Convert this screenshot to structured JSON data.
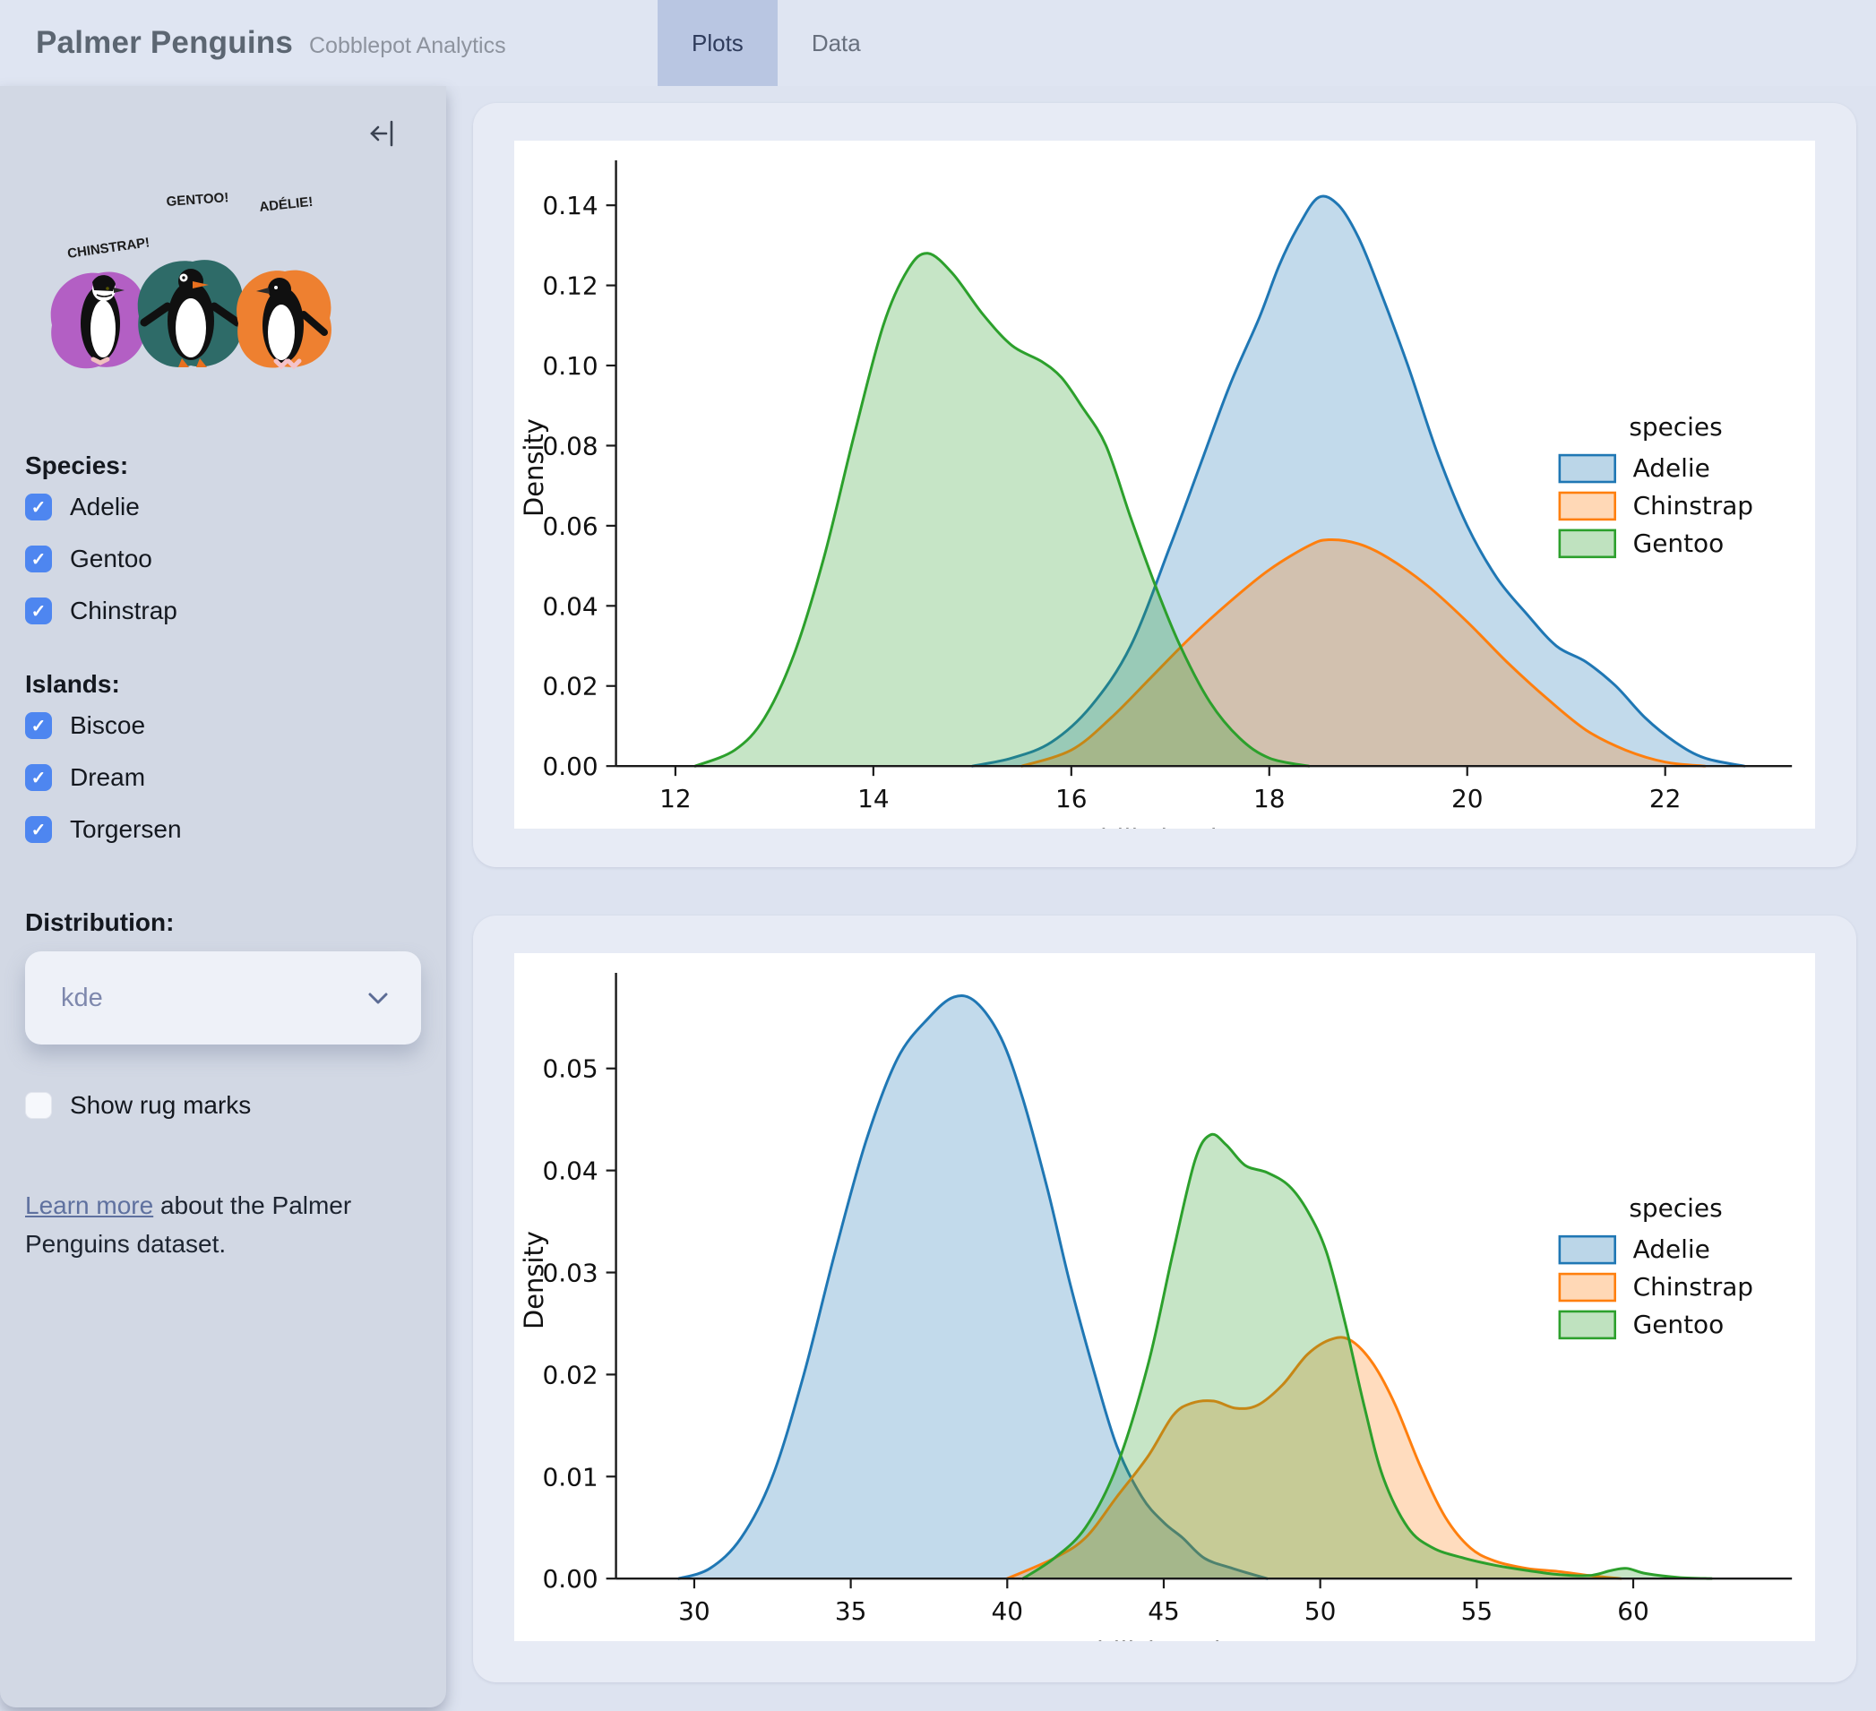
{
  "header": {
    "title": "Palmer Penguins",
    "subtitle": "Cobblepot Analytics",
    "tabs": [
      {
        "label": "Plots",
        "active": true
      },
      {
        "label": "Data",
        "active": false
      }
    ]
  },
  "sidebar": {
    "collapse_icon": "collapse-sidebar-left",
    "artwork": {
      "penguins": [
        {
          "label": "CHINSTRAP!",
          "splash_color": "#b35fc4"
        },
        {
          "label": "GENTOO!",
          "splash_color": "#2e6b68"
        },
        {
          "label": "ADÉLIE!",
          "splash_color": "#ee8030"
        }
      ]
    },
    "species": {
      "label": "Species:",
      "options": [
        {
          "label": "Adelie",
          "checked": true
        },
        {
          "label": "Gentoo",
          "checked": true
        },
        {
          "label": "Chinstrap",
          "checked": true
        }
      ]
    },
    "islands": {
      "label": "Islands:",
      "options": [
        {
          "label": "Biscoe",
          "checked": true
        },
        {
          "label": "Dream",
          "checked": true
        },
        {
          "label": "Torgersen",
          "checked": true
        }
      ]
    },
    "distribution": {
      "label": "Distribution:",
      "value": "kde"
    },
    "rug": {
      "label": "Show rug marks",
      "checked": false
    },
    "footer": {
      "link": "Learn more",
      "text": " about the Palmer Penguins dataset."
    }
  },
  "colors": {
    "accent_checkbox": "#4e86f0",
    "active_tab_bg": "#b9c6e2",
    "adelie": "#1f77b4",
    "chinstrap": "#ff7f0e",
    "gentoo": "#2ca02c"
  },
  "chart_data": [
    {
      "type": "area",
      "kind": "kde-density",
      "xlabel": "bill_depth_mm",
      "ylabel": "Density",
      "xlim": [
        11.4,
        23.1
      ],
      "ylim": [
        0,
        0.149
      ],
      "x_ticks": [
        12,
        14,
        16,
        18,
        20,
        22
      ],
      "x_tick_labels": [
        "12",
        "14",
        "16",
        "18",
        "20",
        "22"
      ],
      "y_ticks": [
        0,
        0.02,
        0.04,
        0.06,
        0.08,
        0.1,
        0.12,
        0.14
      ],
      "y_tick_labels": [
        "0.00",
        "0.02",
        "0.04",
        "0.06",
        "0.08",
        "0.10",
        "0.12",
        "0.14"
      ],
      "grid": false,
      "legend_title": "species",
      "legend_position": "right",
      "legend_y": 330,
      "series": [
        {
          "name": "Adelie",
          "color": "#1f77b4",
          "points": [
            [
              15.0,
              0.0
            ],
            [
              15.4,
              0.002
            ],
            [
              15.8,
              0.006
            ],
            [
              16.2,
              0.015
            ],
            [
              16.6,
              0.03
            ],
            [
              17.0,
              0.055
            ],
            [
              17.3,
              0.075
            ],
            [
              17.6,
              0.095
            ],
            [
              17.9,
              0.112
            ],
            [
              18.1,
              0.125
            ],
            [
              18.3,
              0.135
            ],
            [
              18.5,
              0.142
            ],
            [
              18.7,
              0.14
            ],
            [
              18.9,
              0.132
            ],
            [
              19.1,
              0.12
            ],
            [
              19.4,
              0.1
            ],
            [
              19.7,
              0.078
            ],
            [
              20.0,
              0.06
            ],
            [
              20.3,
              0.047
            ],
            [
              20.6,
              0.038
            ],
            [
              20.9,
              0.03
            ],
            [
              21.2,
              0.026
            ],
            [
              21.5,
              0.02
            ],
            [
              21.8,
              0.012
            ],
            [
              22.1,
              0.006
            ],
            [
              22.4,
              0.002
            ],
            [
              22.8,
              0.0
            ]
          ]
        },
        {
          "name": "Chinstrap",
          "color": "#ff7f0e",
          "points": [
            [
              15.5,
              0.0
            ],
            [
              16.0,
              0.004
            ],
            [
              16.4,
              0.012
            ],
            [
              16.8,
              0.022
            ],
            [
              17.2,
              0.032
            ],
            [
              17.6,
              0.041
            ],
            [
              18.0,
              0.049
            ],
            [
              18.4,
              0.055
            ],
            [
              18.6,
              0.0565
            ],
            [
              18.9,
              0.0555
            ],
            [
              19.2,
              0.052
            ],
            [
              19.6,
              0.045
            ],
            [
              20.0,
              0.036
            ],
            [
              20.4,
              0.026
            ],
            [
              20.8,
              0.017
            ],
            [
              21.2,
              0.009
            ],
            [
              21.6,
              0.004
            ],
            [
              22.0,
              0.001
            ],
            [
              22.4,
              0.0
            ]
          ]
        },
        {
          "name": "Gentoo",
          "color": "#2ca02c",
          "points": [
            [
              12.2,
              0.0
            ],
            [
              12.6,
              0.004
            ],
            [
              12.9,
              0.012
            ],
            [
              13.2,
              0.028
            ],
            [
              13.5,
              0.052
            ],
            [
              13.8,
              0.082
            ],
            [
              14.1,
              0.11
            ],
            [
              14.35,
              0.124
            ],
            [
              14.55,
              0.128
            ],
            [
              14.8,
              0.123
            ],
            [
              15.1,
              0.113
            ],
            [
              15.4,
              0.105
            ],
            [
              15.7,
              0.101
            ],
            [
              15.9,
              0.097
            ],
            [
              16.1,
              0.09
            ],
            [
              16.35,
              0.08
            ],
            [
              16.6,
              0.062
            ],
            [
              16.85,
              0.045
            ],
            [
              17.1,
              0.03
            ],
            [
              17.4,
              0.016
            ],
            [
              17.7,
              0.007
            ],
            [
              18.0,
              0.002
            ],
            [
              18.4,
              0.0
            ]
          ]
        }
      ]
    },
    {
      "type": "area",
      "kind": "kde-density",
      "xlabel": "bill_length_mm",
      "ylabel": "Density",
      "xlim": [
        27.5,
        64.5
      ],
      "ylim": [
        0,
        0.0585
      ],
      "x_ticks": [
        30,
        35,
        40,
        45,
        50,
        55,
        60
      ],
      "x_tick_labels": [
        "30",
        "35",
        "40",
        "45",
        "50",
        "55",
        "60"
      ],
      "y_ticks": [
        0,
        0.01,
        0.02,
        0.03,
        0.04,
        0.05
      ],
      "y_tick_labels": [
        "0.00",
        "0.01",
        "0.02",
        "0.03",
        "0.04",
        "0.05"
      ],
      "grid": false,
      "legend_title": "species",
      "legend_position": "right",
      "legend_y": 295,
      "series": [
        {
          "name": "Adelie",
          "color": "#1f77b4",
          "points": [
            [
              29.5,
              0.0
            ],
            [
              30.5,
              0.001
            ],
            [
              31.5,
              0.004
            ],
            [
              32.5,
              0.01
            ],
            [
              33.5,
              0.02
            ],
            [
              34.5,
              0.032
            ],
            [
              35.5,
              0.043
            ],
            [
              36.5,
              0.051
            ],
            [
              37.5,
              0.055
            ],
            [
              38.3,
              0.057
            ],
            [
              39.0,
              0.0565
            ],
            [
              39.8,
              0.053
            ],
            [
              40.5,
              0.047
            ],
            [
              41.3,
              0.038
            ],
            [
              42.0,
              0.029
            ],
            [
              42.8,
              0.02
            ],
            [
              43.5,
              0.013
            ],
            [
              44.3,
              0.008
            ],
            [
              45.0,
              0.0055
            ],
            [
              45.6,
              0.004
            ],
            [
              46.3,
              0.002
            ],
            [
              47.2,
              0.001
            ],
            [
              48.3,
              0.0
            ]
          ]
        },
        {
          "name": "Chinstrap",
          "color": "#ff7f0e",
          "points": [
            [
              40.0,
              0.0
            ],
            [
              41.5,
              0.002
            ],
            [
              42.5,
              0.004
            ],
            [
              43.5,
              0.008
            ],
            [
              44.5,
              0.012
            ],
            [
              45.3,
              0.016
            ],
            [
              45.9,
              0.0172
            ],
            [
              46.6,
              0.0174
            ],
            [
              47.3,
              0.0167
            ],
            [
              48.0,
              0.017
            ],
            [
              48.8,
              0.019
            ],
            [
              49.6,
              0.022
            ],
            [
              50.4,
              0.0235
            ],
            [
              51.0,
              0.0233
            ],
            [
              51.7,
              0.021
            ],
            [
              52.4,
              0.017
            ],
            [
              53.2,
              0.011
            ],
            [
              54.0,
              0.006
            ],
            [
              54.8,
              0.003
            ],
            [
              55.6,
              0.0017
            ],
            [
              56.6,
              0.001
            ],
            [
              57.6,
              0.0007
            ],
            [
              58.6,
              0.0003
            ],
            [
              59.6,
              0.0
            ]
          ]
        },
        {
          "name": "Gentoo",
          "color": "#2ca02c",
          "points": [
            [
              40.5,
              0.0
            ],
            [
              41.5,
              0.002
            ],
            [
              42.5,
              0.005
            ],
            [
              43.5,
              0.011
            ],
            [
              44.5,
              0.021
            ],
            [
              45.3,
              0.032
            ],
            [
              46.0,
              0.041
            ],
            [
              46.5,
              0.0435
            ],
            [
              47.0,
              0.0425
            ],
            [
              47.6,
              0.0405
            ],
            [
              48.3,
              0.0398
            ],
            [
              49.0,
              0.0385
            ],
            [
              49.6,
              0.036
            ],
            [
              50.2,
              0.032
            ],
            [
              50.8,
              0.025
            ],
            [
              51.4,
              0.017
            ],
            [
              52.0,
              0.01
            ],
            [
              52.8,
              0.005
            ],
            [
              53.6,
              0.003
            ],
            [
              54.6,
              0.002
            ],
            [
              55.6,
              0.0013
            ],
            [
              56.6,
              0.0008
            ],
            [
              57.6,
              0.0004
            ],
            [
              58.6,
              0.0003
            ],
            [
              59.3,
              0.0008
            ],
            [
              59.8,
              0.001
            ],
            [
              60.4,
              0.0005
            ],
            [
              61.5,
              0.0001
            ],
            [
              62.5,
              0.0
            ]
          ]
        }
      ]
    }
  ]
}
